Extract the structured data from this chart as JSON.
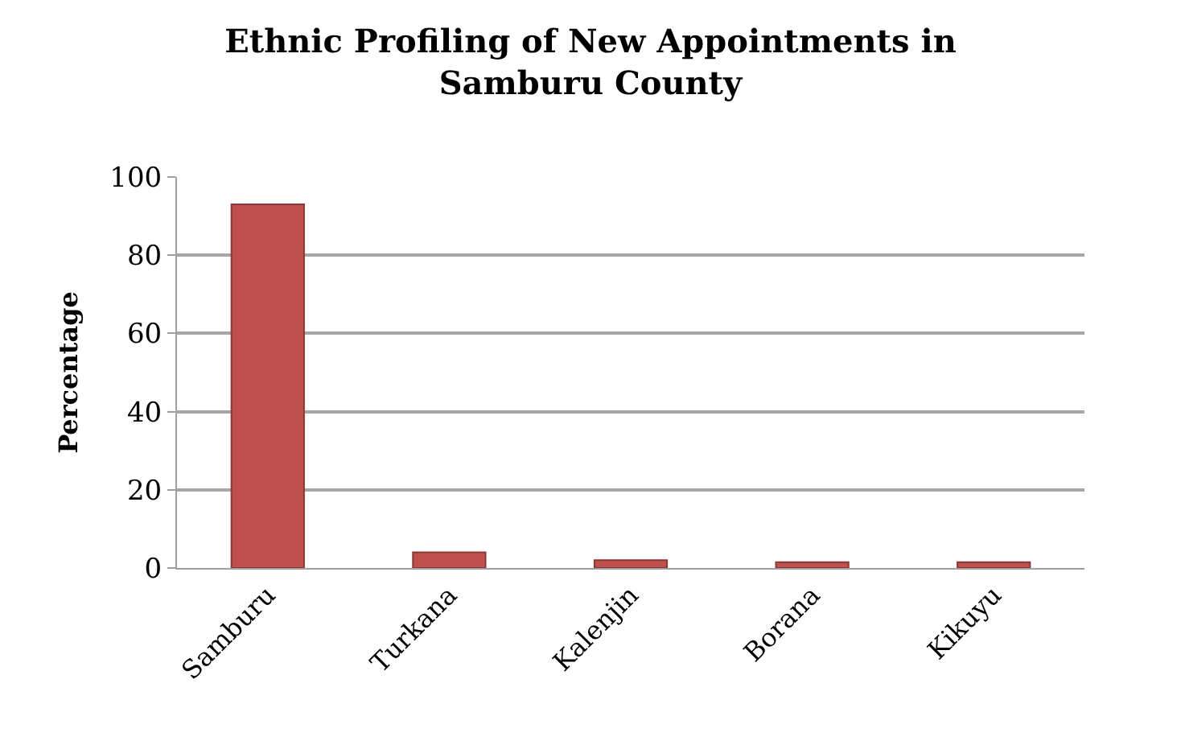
{
  "chart_data": {
    "type": "bar",
    "title": "Ethnic Profiling of New Appointments in Samburu County",
    "ylabel": "Percentage",
    "categories": [
      "Samburu",
      "Turkana",
      "Kalenjin",
      "Borana",
      "Kikuyu"
    ],
    "values": [
      93,
      4,
      2,
      1.5,
      1.5
    ],
    "color": "#c0504d",
    "ylim": [
      0,
      100
    ],
    "yticks": [
      0,
      20,
      40,
      60,
      80,
      100
    ],
    "grid": "y"
  }
}
